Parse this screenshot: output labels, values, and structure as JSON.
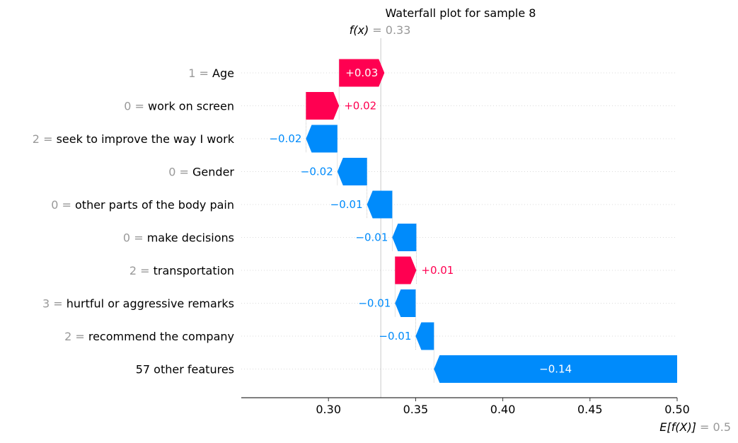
{
  "chart_data": {
    "type": "waterfall",
    "title": "Waterfall plot for sample 8",
    "fx_label": "f(x)",
    "fx_eq": " = ",
    "fx_value": "0.33",
    "base_label": "E[f(X)]",
    "base_eq": " = ",
    "base_value": "0.5",
    "xlim": [
      0.25,
      0.5
    ],
    "fx": 0.33,
    "base": 0.5,
    "xticks": [
      0.3,
      0.35,
      0.4,
      0.45,
      0.5
    ],
    "xtick_labels": [
      "0.30",
      "0.35",
      "0.40",
      "0.45",
      "0.50"
    ],
    "colors": {
      "positive": "#ff0051",
      "negative": "#008bfb",
      "text": "#000000",
      "value_grey": "#999999",
      "grid": "#cccccc"
    },
    "features": [
      {
        "value": "1",
        "eq": " = ",
        "name": "Age",
        "contribution": 0.026,
        "label": "+0.03"
      },
      {
        "value": "0",
        "eq": " = ",
        "name": "work on screen",
        "contribution": 0.019,
        "label": "+0.02"
      },
      {
        "value": "2",
        "eq": " = ",
        "name": "seek to improve the way I work",
        "contribution": -0.018,
        "label": "−0.02"
      },
      {
        "value": "0",
        "eq": " = ",
        "name": "Gender",
        "contribution": -0.017,
        "label": "−0.02"
      },
      {
        "value": "0",
        "eq": " = ",
        "name": "other parts of the body pain",
        "contribution": -0.0145,
        "label": "−0.01"
      },
      {
        "value": "0",
        "eq": " = ",
        "name": "make decisions",
        "contribution": -0.0138,
        "label": "−0.01"
      },
      {
        "value": "2",
        "eq": " = ",
        "name": "transportation",
        "contribution": 0.0122,
        "label": "+0.01"
      },
      {
        "value": "3",
        "eq": " = ",
        "name": "hurtful or aggressive remarks",
        "contribution": -0.0118,
        "label": "−0.01"
      },
      {
        "value": "2",
        "eq": " = ",
        "name": "recommend the company",
        "contribution": -0.0105,
        "label": "−0.01"
      },
      {
        "value": "",
        "eq": "",
        "name": "57 other features",
        "contribution": -0.1395,
        "label": "−0.14"
      }
    ]
  }
}
